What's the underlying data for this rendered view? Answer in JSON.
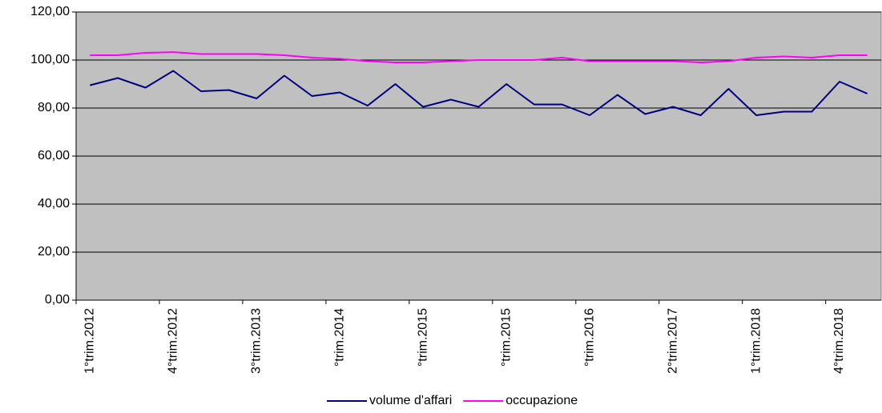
{
  "chart_data": {
    "type": "line",
    "categories": [
      "1°trim.2012",
      null,
      null,
      "4°trim.2012",
      null,
      null,
      "3°trim.2013",
      null,
      null,
      "°trim.2014",
      null,
      null,
      "°trim.2015",
      null,
      null,
      "°trim.2015",
      null,
      null,
      "°trim.2016",
      null,
      null,
      "2°trim.2017",
      null,
      null,
      "1°trim.2018",
      null,
      null,
      "4°trim.2018",
      null
    ],
    "series": [
      {
        "name": "volume d'affari",
        "color": "#000080",
        "values": [
          89.5,
          92.5,
          88.5,
          95.5,
          87,
          87.5,
          84,
          93.5,
          85,
          86.5,
          81,
          90,
          80.5,
          83.5,
          80.5,
          90,
          81.5,
          81.5,
          77,
          85.5,
          77.5,
          80.5,
          77,
          88,
          77,
          78.5,
          78.5,
          91,
          86
        ]
      },
      {
        "name": "occupazione",
        "color": "#ff00ff",
        "values": [
          102,
          102,
          103,
          103.3,
          102.5,
          102.5,
          102.5,
          102,
          101,
          100.5,
          99.5,
          99,
          99,
          99.5,
          100,
          100,
          100,
          101,
          99.5,
          99.5,
          99.5,
          99.5,
          99,
          99.5,
          101,
          101.5,
          101,
          102,
          102
        ]
      }
    ],
    "ylim": [
      0,
      120
    ],
    "yticks": [
      {
        "value": 0,
        "label": "0,00"
      },
      {
        "value": 20,
        "label": "20,00"
      },
      {
        "value": 40,
        "label": "40,00"
      },
      {
        "value": 60,
        "label": "60,00"
      },
      {
        "value": 80,
        "label": "80,00"
      },
      {
        "value": 100,
        "label": "100,00"
      },
      {
        "value": 120,
        "label": "120,00"
      }
    ],
    "grid": true,
    "legend": "bottom"
  }
}
